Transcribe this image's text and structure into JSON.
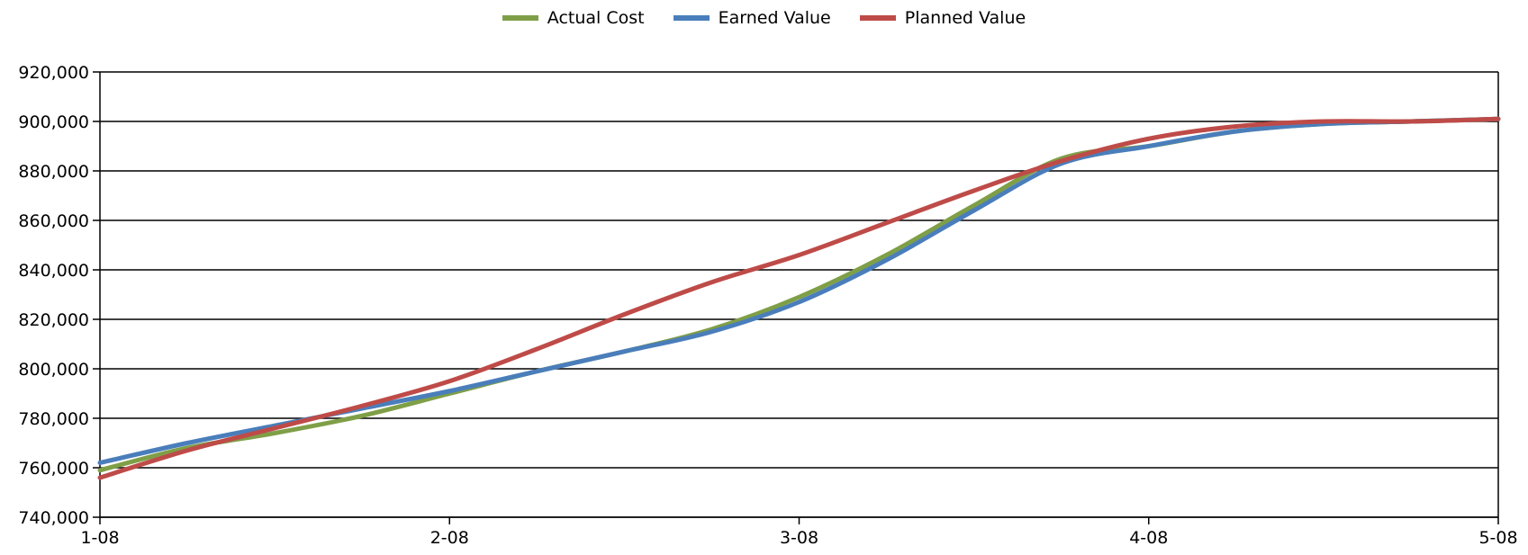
{
  "chart_data": {
    "type": "line",
    "x_labels": [
      "1-08",
      "2-08",
      "3-08",
      "4-08",
      "5-08"
    ],
    "x_positions": [
      0,
      1,
      2,
      3,
      4
    ],
    "ylim": [
      740000,
      920000
    ],
    "yticks": [
      740000,
      760000,
      780000,
      800000,
      820000,
      840000,
      860000,
      880000,
      900000,
      920000
    ],
    "ytick_labels": [
      "740,000",
      "760,000",
      "780,000",
      "800,000",
      "820,000",
      "840,000",
      "860,000",
      "880,000",
      "900,000",
      "920,000"
    ],
    "grid": true,
    "legend_position": "top-center",
    "series": [
      {
        "name": "Actual Cost",
        "color": "#7f9f47",
        "x": [
          0,
          0.25,
          0.5,
          0.75,
          1,
          1.25,
          1.5,
          1.75,
          2,
          2.25,
          2.5,
          2.75,
          3,
          3.25,
          3.5,
          3.75,
          4
        ],
        "values": [
          759000,
          768000,
          774000,
          781000,
          790000,
          799000,
          807000,
          816000,
          829000,
          846000,
          866000,
          885000,
          890000,
          896000,
          899000,
          900000,
          901000
        ]
      },
      {
        "name": "Earned Value",
        "color": "#4a7ebb",
        "x": [
          0,
          0.25,
          0.5,
          0.75,
          1,
          1.25,
          1.5,
          1.75,
          2,
          2.25,
          2.5,
          2.75,
          3,
          3.25,
          3.5,
          3.75,
          4
        ],
        "values": [
          762000,
          770000,
          777000,
          784000,
          791000,
          799000,
          807000,
          815000,
          827000,
          844000,
          864000,
          883000,
          890000,
          896000,
          899000,
          900000,
          901000
        ]
      },
      {
        "name": "Planned Value",
        "color": "#be4b48",
        "x": [
          0,
          0.25,
          0.5,
          0.75,
          1,
          1.25,
          1.5,
          1.75,
          2,
          2.25,
          2.5,
          2.75,
          3,
          3.25,
          3.5,
          3.75,
          4
        ],
        "values": [
          756000,
          767000,
          776000,
          785000,
          795000,
          808000,
          822000,
          835000,
          846000,
          859000,
          872000,
          884000,
          893000,
          898000,
          900000,
          900000,
          901000
        ]
      }
    ]
  }
}
